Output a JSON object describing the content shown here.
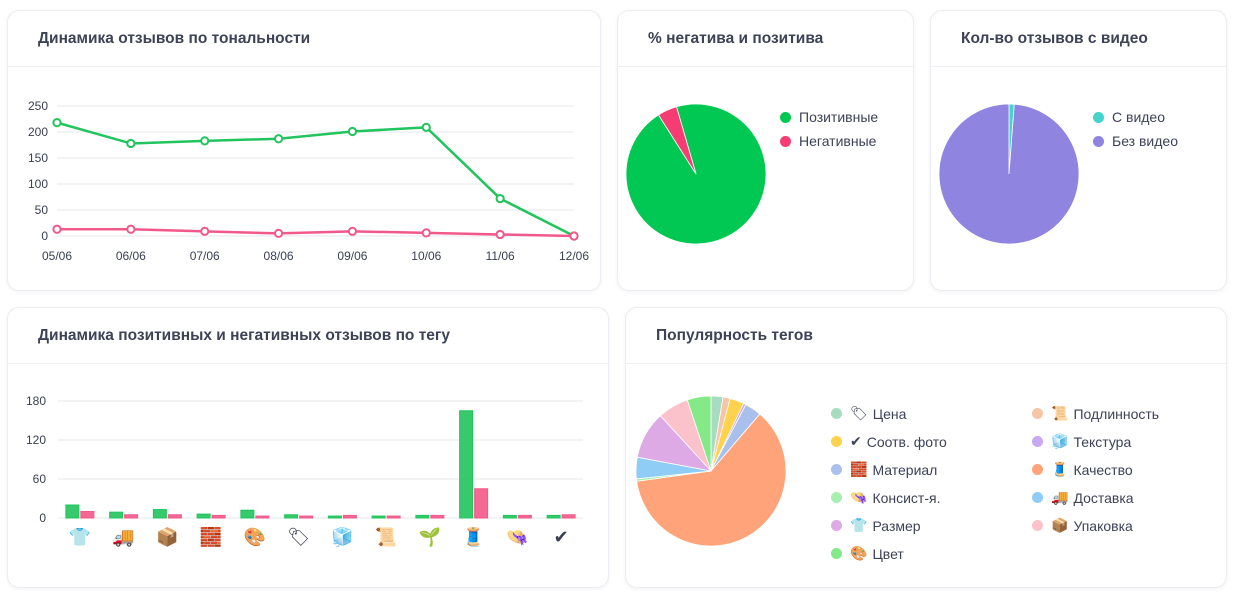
{
  "colors": {
    "positive": "#21c45d",
    "negative": "#f2588a",
    "grid": "#e5e7eb",
    "axis_text": "#3a3f51"
  },
  "cards": {
    "tone_dynamics": {
      "title": "Динамика отзывов по тональности"
    },
    "pos_neg_share": {
      "title": "% негатива и позитива"
    },
    "video_count": {
      "title": "Кол-во отзывов с видео"
    },
    "tag_dynamics": {
      "title": "Динамика позитивных и негативных отзывов по тегу"
    },
    "tag_popularity": {
      "title": "Популярность тегов"
    }
  },
  "chart_data": [
    {
      "id": "tone_dynamics",
      "type": "line",
      "title": "Динамика отзывов по тональности",
      "categories": [
        "05/06",
        "06/06",
        "07/06",
        "08/06",
        "09/06",
        "10/06",
        "11/06",
        "12/06"
      ],
      "y_ticks": [
        "0",
        "50",
        "100",
        "150",
        "200",
        "250"
      ],
      "ylim": [
        0,
        250
      ],
      "series": [
        {
          "name": "Позитивные",
          "color": "#21c45d",
          "values": [
            218,
            178,
            183,
            187,
            201,
            209,
            72,
            0
          ]
        },
        {
          "name": "Негативные",
          "color": "#f2588a",
          "values": [
            13,
            13,
            9,
            5,
            9,
            6,
            3,
            0
          ]
        }
      ]
    },
    {
      "id": "pos_neg_share",
      "type": "pie",
      "title": "% негатива и позитива",
      "labels": [
        "Позитивные",
        "Негативные"
      ],
      "values": [
        95.5,
        4.5
      ],
      "colors": [
        "#00c853",
        "#f73c74"
      ]
    },
    {
      "id": "video_count",
      "type": "pie",
      "title": "Кол-во отзывов с видео",
      "labels": [
        "С видео",
        "Без видео"
      ],
      "values": [
        1.2,
        98.8
      ],
      "colors": [
        "#44d3cd",
        "#8f84e0"
      ]
    },
    {
      "id": "tag_dynamics",
      "type": "bar",
      "title": "Динамика позитивных и негативных отзывов по тегу",
      "categories": [
        "Размер",
        "Доставка",
        "Упаковка",
        "Материал",
        "Цвет",
        "Цена",
        "Текстура",
        "Подлинность",
        "Консист-я.",
        "Качество",
        "Консист-я.",
        "Соотв. фото"
      ],
      "category_icons": [
        "👕",
        "🚚",
        "📦",
        "🧱",
        "🎨",
        "🏷",
        "🧊",
        "📜",
        "🌱",
        "🧵",
        "👒",
        "✔"
      ],
      "y_ticks": [
        "0",
        "60",
        "120",
        "180"
      ],
      "ylim": [
        0,
        200
      ],
      "series": [
        {
          "name": "Позитивные",
          "color": "#21c45d",
          "values": [
            20,
            9,
            13,
            6,
            12,
            5,
            3,
            3,
            4,
            165,
            4,
            4
          ]
        },
        {
          "name": "Негативные",
          "color": "#f2588a",
          "values": [
            10,
            5,
            5,
            4,
            3,
            3,
            4,
            3,
            4,
            45,
            4,
            5
          ]
        }
      ]
    },
    {
      "id": "tag_popularity",
      "type": "pie",
      "title": "Популярность тегов",
      "labels": [
        "Цена",
        "Подлинность",
        "Соотв. фото",
        "Текстура",
        "Материал",
        "Качество",
        "Консист-я.",
        "Доставка",
        "Размер",
        "Упаковка",
        "Цвет"
      ],
      "icons": [
        "🏷",
        "📜",
        "✔",
        "🧊",
        "🧱",
        "🧵",
        "👒",
        "🚚",
        "👕",
        "📦",
        "🎨"
      ],
      "values": [
        2.5,
        1.5,
        3,
        0.5,
        3.5,
        60,
        0.5,
        4.5,
        10,
        6.5,
        5
      ],
      "colors": [
        "#a8dcc0",
        "#f6c4a6",
        "#ffd24d",
        "#c9a8f0",
        "#a9c0ec",
        "#ffa47a",
        "#a6efae",
        "#8fcdf7",
        "#ddaae5",
        "#fcc2cc",
        "#84ea88"
      ]
    }
  ]
}
